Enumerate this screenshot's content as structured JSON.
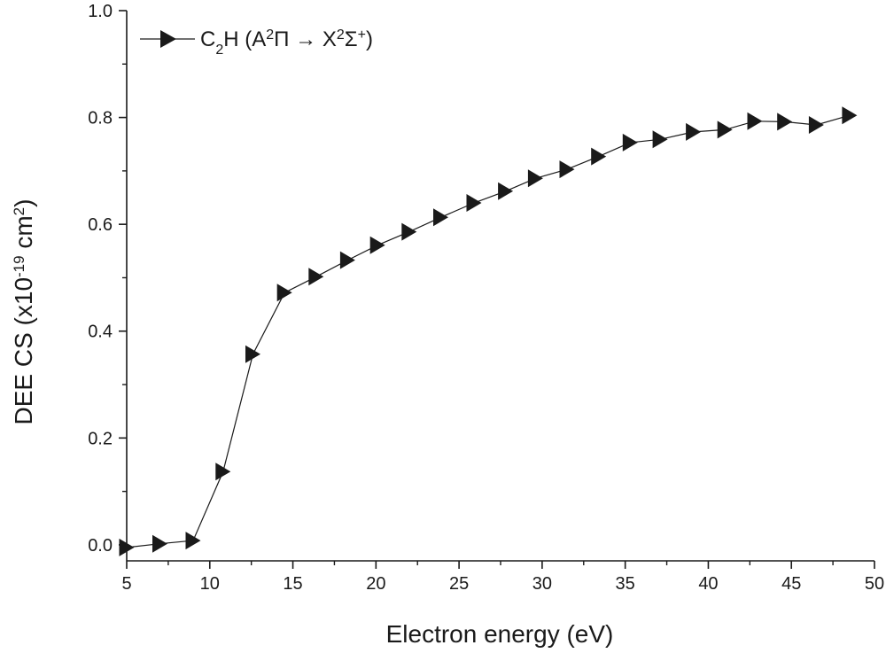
{
  "chart_data": {
    "type": "line",
    "title": "",
    "xlabel": "Electron energy (eV)",
    "ylabel": "DEE CS (x10-19 cm2)",
    "ylabel_parts": {
      "prefix": "DEE CS (x10",
      "exp": "-19",
      "mid": " cm",
      "exp2": "2",
      "suffix": ")"
    },
    "xlim": [
      5,
      50
    ],
    "ylim": [
      -0.03,
      1.0
    ],
    "x_ticks": [
      5,
      10,
      15,
      20,
      25,
      30,
      35,
      40,
      45,
      50
    ],
    "x_tick_labels": [
      "5",
      "10",
      "15",
      "20",
      "25",
      "30",
      "35",
      "40",
      "45",
      "50"
    ],
    "y_ticks": [
      0.0,
      0.2,
      0.4,
      0.6,
      0.8,
      1.0
    ],
    "y_tick_labels": [
      "0.0",
      "0.2",
      "0.4",
      "0.6",
      "0.8",
      "1.0"
    ],
    "grid": false,
    "legend_position": "top-left",
    "series": [
      {
        "name": "C2H (A2Π → X2Σ+)",
        "legend_parts": {
          "a": "C",
          "sub": "2",
          "b": "H (A",
          "sup1": "2",
          "c": "Π → X",
          "sup2": "2",
          "d": "Σ",
          "sup3": "+",
          "e": ")"
        },
        "marker": "right-triangle",
        "color": "#1a1a1a",
        "x": [
          5.0,
          7.0,
          9.0,
          10.8,
          12.6,
          14.5,
          16.4,
          18.3,
          20.1,
          22.0,
          23.9,
          25.9,
          27.8,
          29.6,
          31.5,
          33.4,
          35.3,
          37.1,
          39.1,
          41.0,
          42.8,
          44.6,
          46.5,
          48.5
        ],
        "y": [
          -0.005,
          0.002,
          0.008,
          0.137,
          0.357,
          0.472,
          0.502,
          0.533,
          0.561,
          0.586,
          0.613,
          0.64,
          0.662,
          0.686,
          0.703,
          0.727,
          0.753,
          0.759,
          0.773,
          0.777,
          0.793,
          0.792,
          0.786,
          0.804
        ]
      }
    ]
  }
}
